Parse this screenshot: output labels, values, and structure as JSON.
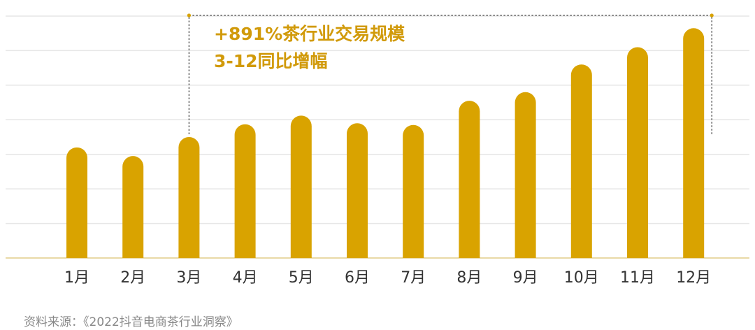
{
  "chart_data": {
    "type": "bar",
    "categories": [
      "1月",
      "2月",
      "3月",
      "4月",
      "5月",
      "6月",
      "7月",
      "8月",
      "9月",
      "10月",
      "11月",
      "12月"
    ],
    "values": [
      3.2,
      2.95,
      3.5,
      3.87,
      4.12,
      3.9,
      3.85,
      4.55,
      4.8,
      5.6,
      6.1,
      6.65
    ],
    "ylim": [
      0,
      7
    ],
    "grid": true,
    "gridlines": 7,
    "bar_color": "#d9a300",
    "annotation": {
      "line1": "+891%茶行业交易规模",
      "line2": "3-12同比增幅",
      "from_category": "3月",
      "to_category": "12月",
      "color": "#d19a0a"
    }
  },
  "source": "资料来源：《2022抖音电商茶行业洞察》"
}
